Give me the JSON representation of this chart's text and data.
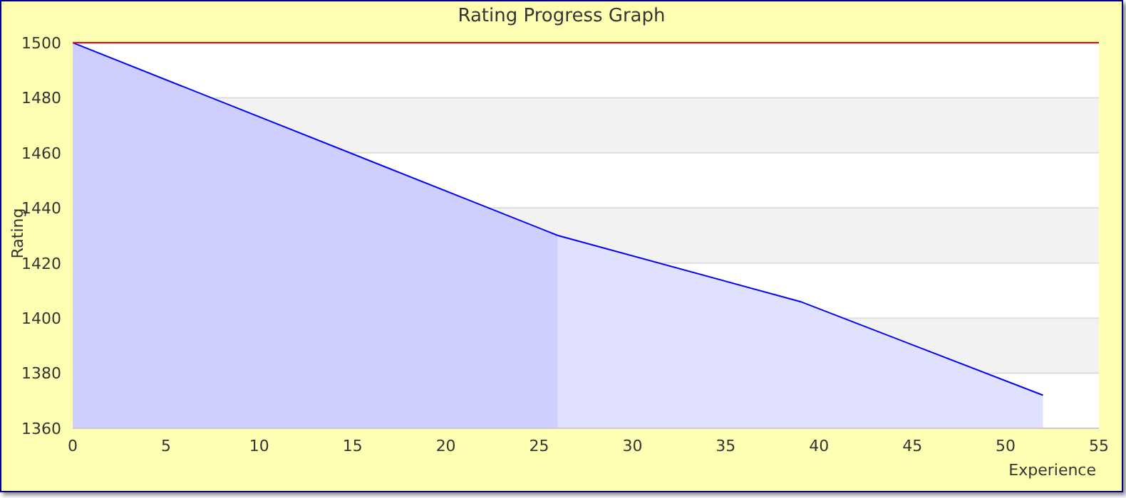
{
  "chart_data": {
    "type": "area",
    "title": "Rating Progress Graph",
    "xlabel": "Experience",
    "ylabel": "Rating",
    "series": [
      {
        "color": "#0000ff",
        "x": [
          0,
          26
        ],
        "values": [
          1500,
          1430
        ]
      },
      {
        "color": "#0000ff",
        "x": [
          26,
          39,
          52
        ],
        "values": [
          1430,
          1406,
          1372
        ]
      }
    ],
    "xlim": [
      0,
      55
    ],
    "xticks": [
      0,
      5,
      10,
      15,
      20,
      25,
      30,
      35,
      40,
      45,
      50,
      55
    ],
    "ylim": [
      1360,
      1500
    ],
    "yticks": [
      1360,
      1380,
      1400,
      1420,
      1440,
      1460,
      1480,
      1500
    ],
    "grid": "y",
    "marker": "none",
    "ref_lines": [
      {
        "axis": "y",
        "value": 1500,
        "color": "#ff0000"
      }
    ]
  }
}
